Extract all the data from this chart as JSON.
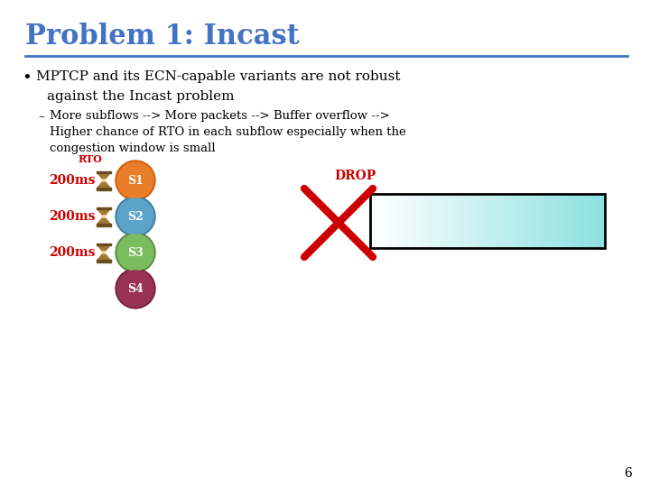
{
  "title": "Problem 1: Incast",
  "title_color": "#4472C4",
  "title_fontsize": 22,
  "bg_color": "#FFFFFF",
  "line_color": "#4472C4",
  "bullet_line1": "MPTCP and its ECN-capable variants are not robust",
  "bullet_line2": "against the Incast problem",
  "sub_line1": "More subflows --> More packets --> Buffer overflow -->",
  "sub_line2": "Higher chance of RTO in each subflow especially when the",
  "sub_line3": "congestion window is small",
  "rto_label": "RTO",
  "rto_color": "#CC0000",
  "ms_labels": [
    "200ms",
    "200ms",
    "200ms"
  ],
  "ms_color": "#CC0000",
  "server_labels": [
    "S1",
    "S2",
    "S3",
    "S4"
  ],
  "server_colors": [
    "#E87D2A",
    "#5BA3C9",
    "#7BBD5E",
    "#993355"
  ],
  "server_border_colors": [
    "#D06010",
    "#4080A0",
    "#5A9040",
    "#772244"
  ],
  "drop_text": "DROP",
  "drop_color": "#CC0000",
  "page_number": "6",
  "font_family": "DejaVu Serif",
  "hg_color": "#A07830",
  "hg_dark": "#6B4C1E"
}
